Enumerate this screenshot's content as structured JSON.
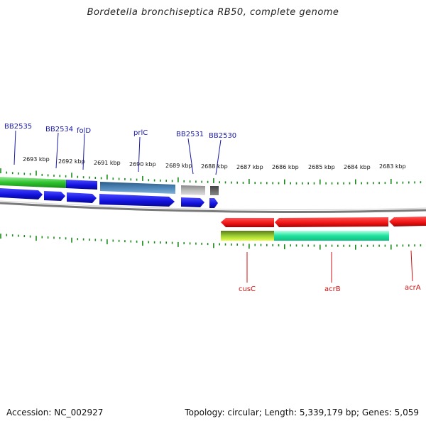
{
  "title": "Bordetella bronchiseptica RB50, complete genome",
  "footer": {
    "accession": "Accession: NC_002927",
    "topology": "Topology: circular; Length: 5,339,179 bp; Genes: 5,059"
  },
  "kbp_labels": [
    "2693 kbp",
    "2692 kbp",
    "2691 kbp",
    "2690 kbp",
    "2689 kbp",
    "2688 kbp",
    "2687 kbp",
    "2686 kbp",
    "2685 kbp",
    "2684 kbp",
    "2683 kbp"
  ],
  "top_genes": [
    "BB2535",
    "BB2534",
    "folD",
    "prlC",
    "BB2531",
    "BB2530"
  ],
  "bottom_genes": [
    "cusC",
    "acrB",
    "acrA"
  ],
  "colors": {
    "gene_label_top": "#1a1aa8",
    "gene_label_bottom": "#cc1111",
    "cds_blue": "#1111dd",
    "cds_red": "#ee1111",
    "tick_green": "#1a8a1a",
    "backbone": "#808080"
  }
}
